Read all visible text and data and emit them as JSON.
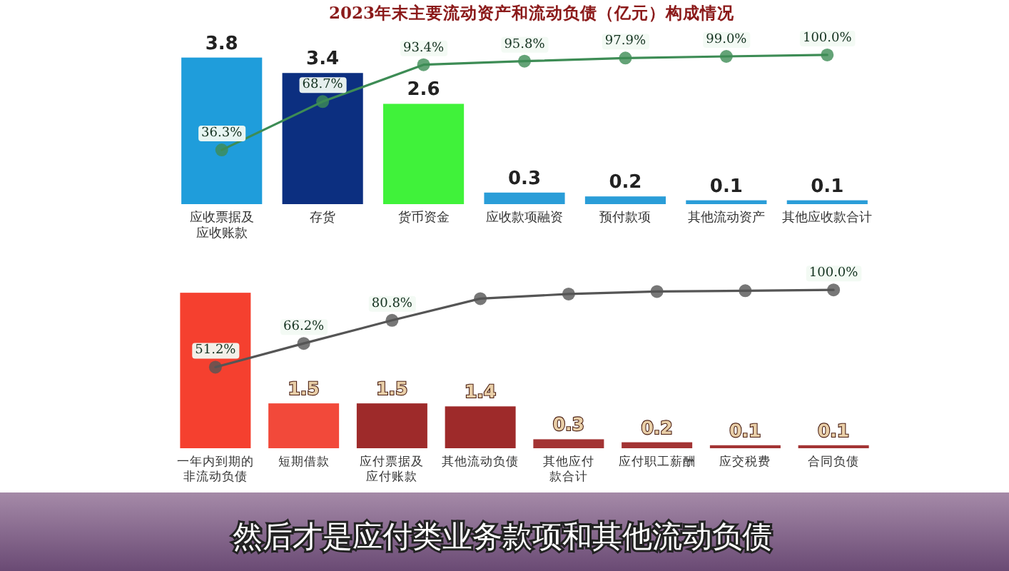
{
  "chart_data": [
    {
      "type": "bar",
      "title": "2023年末主要流动资产和流动负债（亿元）构成情况",
      "categories": [
        "应收票据及应收账款",
        "存货",
        "货币资金",
        "应收款项融资",
        "预付款项",
        "其他流动资产",
        "其他应收款合计"
      ],
      "series": [
        {
          "type": "bar",
          "values": [
            3.8,
            3.4,
            2.6,
            0.3,
            0.2,
            0.1,
            0.1
          ],
          "colors": [
            "#1f9ddb",
            "#0c2f80",
            "#40f23a",
            "#2a9dd8",
            "#2a9dd8",
            "#2a9dd8",
            "#2a9dd8"
          ],
          "value_labels": [
            "3.8",
            "3.4",
            "2.6",
            "0.3",
            "0.2",
            "0.1",
            "0.1"
          ]
        },
        {
          "type": "line",
          "axis": "y2",
          "color": "#3d8c55",
          "marker": "circle",
          "values": [
            36.3,
            68.7,
            93.4,
            95.8,
            97.9,
            99.0,
            100.0
          ],
          "value_labels": [
            "36.3%",
            "68.7%",
            "93.4%",
            "95.8%",
            "97.9%",
            "99.0%",
            "100.0%"
          ]
        }
      ]
    },
    {
      "type": "bar",
      "categories": [
        "一年内到期的非流动负债",
        "短期借款",
        "应付票据及应付账款",
        "其他流动负债",
        "其他应付款合计",
        "应付职工薪酬",
        "应交税费",
        "合同负债"
      ],
      "series": [
        {
          "type": "bar",
          "values": [
            5.2,
            1.5,
            1.5,
            1.4,
            0.3,
            0.2,
            0.1,
            0.1
          ],
          "colors": [
            "#f5402f",
            "#f2493a",
            "#9e2a2a",
            "#9e2a2a",
            "#a33434",
            "#a33434",
            "#a33434",
            "#a33434"
          ],
          "value_labels": [
            null,
            "1.5",
            "1.5",
            "1.4",
            "0.3",
            "0.2",
            "0.1",
            "0.1"
          ]
        },
        {
          "type": "line",
          "axis": "y2",
          "color": "#555555",
          "marker": "circle",
          "values": [
            51.2,
            66.2,
            80.8,
            94.5,
            97.4,
            99.0,
            99.5,
            100.0
          ],
          "value_labels": [
            "51.2%",
            "66.2%",
            "80.8%",
            null,
            null,
            null,
            null,
            "100.0%"
          ]
        }
      ],
      "annotations": [
        "然后才是应付类业务款项和其他流动负债"
      ]
    }
  ]
}
